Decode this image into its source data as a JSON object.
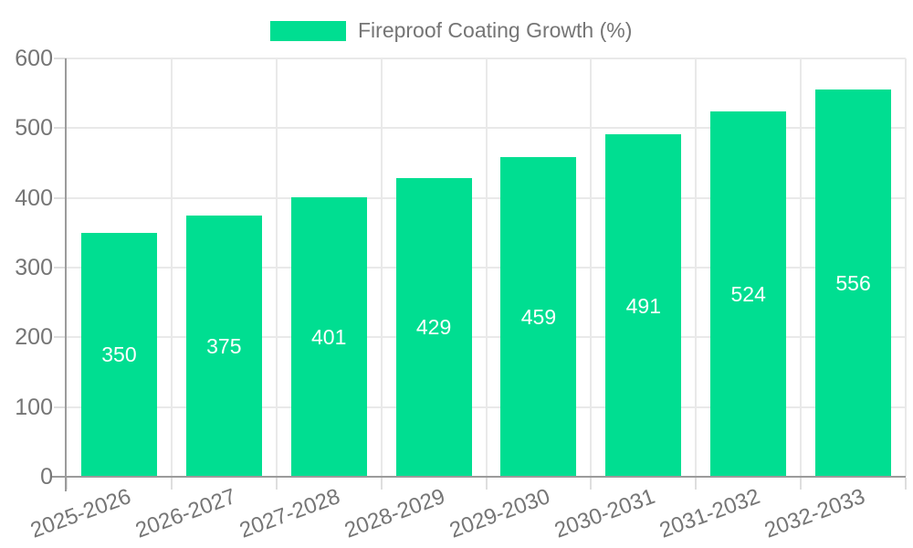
{
  "chart_data": {
    "type": "bar",
    "title": "",
    "legend": "Fireproof Coating Growth (%)",
    "legend_position": "top",
    "categories": [
      "2025-2026",
      "2026-2027",
      "2027-2028",
      "2028-2029",
      "2029-2030",
      "2030-2031",
      "2031-2032",
      "2032-2033"
    ],
    "values": [
      350,
      375,
      401,
      429,
      459,
      491,
      524,
      556
    ],
    "xlabel": "",
    "ylabel": "",
    "ylim": [
      0,
      600
    ],
    "yticks": [
      0,
      100,
      200,
      300,
      400,
      500,
      600
    ],
    "grid": true,
    "bar_color": "#00DE91",
    "value_label_color": "#ffffff",
    "axis_text_color": "#757575"
  }
}
